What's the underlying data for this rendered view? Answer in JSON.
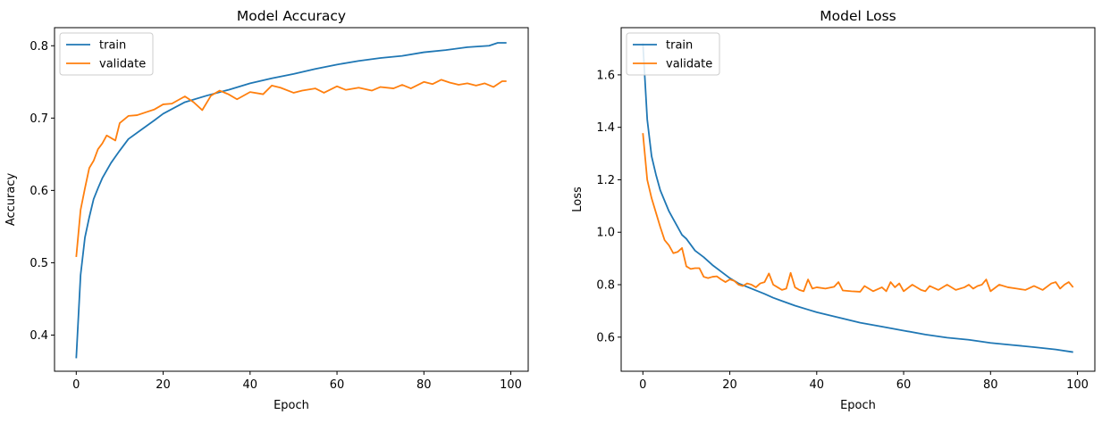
{
  "chart_data": [
    {
      "type": "line",
      "title": "Model Accuracy",
      "xlabel": "Epoch",
      "ylabel": "Accuracy",
      "xlim": [
        -5,
        104
      ],
      "ylim": [
        0.35,
        0.825
      ],
      "xticks": [
        0,
        20,
        40,
        60,
        80,
        100
      ],
      "yticks": [
        0.4,
        0.5,
        0.6,
        0.7,
        0.8
      ],
      "grid": false,
      "legend_position": "upper left",
      "series": [
        {
          "name": "train",
          "color": "#1f77b4",
          "x": [
            0,
            1,
            2,
            3,
            4,
            5,
            6,
            8,
            10,
            12,
            15,
            18,
            20,
            25,
            30,
            35,
            40,
            45,
            50,
            55,
            60,
            65,
            70,
            75,
            80,
            85,
            90,
            95,
            97,
            99
          ],
          "y": [
            0.368,
            0.483,
            0.535,
            0.563,
            0.588,
            0.603,
            0.617,
            0.638,
            0.655,
            0.671,
            0.684,
            0.697,
            0.706,
            0.722,
            0.731,
            0.739,
            0.748,
            0.755,
            0.761,
            0.768,
            0.774,
            0.779,
            0.783,
            0.786,
            0.791,
            0.794,
            0.798,
            0.8,
            0.804,
            0.804
          ]
        },
        {
          "name": "validate",
          "color": "#ff7f0e",
          "x": [
            0,
            1,
            2,
            3,
            4,
            5,
            6,
            7,
            9,
            10,
            12,
            14,
            16,
            18,
            20,
            22,
            25,
            27,
            29,
            31,
            33,
            35,
            37,
            40,
            43,
            45,
            47,
            50,
            52,
            55,
            57,
            60,
            62,
            65,
            68,
            70,
            73,
            75,
            77,
            80,
            82,
            84,
            86,
            88,
            90,
            92,
            94,
            96,
            98,
            99
          ],
          "y": [
            0.508,
            0.573,
            0.603,
            0.631,
            0.641,
            0.657,
            0.665,
            0.676,
            0.669,
            0.693,
            0.703,
            0.704,
            0.708,
            0.712,
            0.719,
            0.72,
            0.73,
            0.722,
            0.711,
            0.731,
            0.738,
            0.733,
            0.726,
            0.736,
            0.733,
            0.745,
            0.742,
            0.735,
            0.738,
            0.741,
            0.735,
            0.744,
            0.739,
            0.742,
            0.738,
            0.743,
            0.741,
            0.746,
            0.741,
            0.75,
            0.747,
            0.753,
            0.749,
            0.746,
            0.748,
            0.745,
            0.748,
            0.743,
            0.751,
            0.751
          ]
        }
      ]
    },
    {
      "type": "line",
      "title": "Model Loss",
      "xlabel": "Epoch",
      "ylabel": "Loss",
      "xlim": [
        -5,
        104
      ],
      "ylim": [
        0.47,
        1.78
      ],
      "xticks": [
        0,
        20,
        40,
        60,
        80,
        100
      ],
      "yticks": [
        0.6,
        0.8,
        1.0,
        1.2,
        1.4,
        1.6
      ],
      "grid": false,
      "legend_position": "upper left",
      "series": [
        {
          "name": "train",
          "color": "#1f77b4",
          "x": [
            0,
            1,
            2,
            3,
            4,
            5,
            6,
            7,
            8,
            9,
            10,
            12,
            14,
            16,
            18,
            20,
            22,
            25,
            28,
            30,
            32,
            35,
            38,
            40,
            45,
            50,
            55,
            60,
            65,
            70,
            75,
            80,
            85,
            90,
            95,
            99
          ],
          "y": [
            1.72,
            1.43,
            1.29,
            1.22,
            1.16,
            1.12,
            1.08,
            1.05,
            1.02,
            0.99,
            0.975,
            0.93,
            0.905,
            0.875,
            0.85,
            0.825,
            0.805,
            0.785,
            0.765,
            0.75,
            0.738,
            0.72,
            0.705,
            0.695,
            0.675,
            0.655,
            0.64,
            0.625,
            0.61,
            0.598,
            0.59,
            0.578,
            0.57,
            0.562,
            0.553,
            0.543
          ]
        },
        {
          "name": "validate",
          "color": "#ff7f0e",
          "x": [
            0,
            1,
            2,
            3,
            4,
            5,
            6,
            7,
            8,
            9,
            10,
            11,
            12,
            13,
            14,
            15,
            16,
            17,
            18,
            19,
            20,
            21,
            22,
            23,
            24,
            25,
            26,
            27,
            28,
            29,
            30,
            31,
            32,
            33,
            34,
            35,
            36,
            37,
            38,
            39,
            40,
            42,
            44,
            45,
            46,
            48,
            50,
            51,
            53,
            55,
            56,
            57,
            58,
            59,
            60,
            62,
            64,
            65,
            66,
            68,
            70,
            72,
            74,
            75,
            76,
            77,
            78,
            79,
            80,
            82,
            84,
            86,
            88,
            90,
            92,
            94,
            95,
            96,
            97,
            98,
            99
          ],
          "y": [
            1.378,
            1.2,
            1.13,
            1.075,
            1.02,
            0.97,
            0.95,
            0.92,
            0.925,
            0.94,
            0.87,
            0.86,
            0.863,
            0.863,
            0.83,
            0.825,
            0.83,
            0.832,
            0.82,
            0.81,
            0.82,
            0.815,
            0.8,
            0.795,
            0.805,
            0.8,
            0.79,
            0.805,
            0.81,
            0.843,
            0.8,
            0.79,
            0.78,
            0.785,
            0.845,
            0.79,
            0.78,
            0.775,
            0.82,
            0.785,
            0.79,
            0.785,
            0.792,
            0.81,
            0.778,
            0.775,
            0.773,
            0.795,
            0.775,
            0.79,
            0.775,
            0.81,
            0.79,
            0.805,
            0.775,
            0.8,
            0.78,
            0.775,
            0.795,
            0.78,
            0.8,
            0.78,
            0.79,
            0.8,
            0.785,
            0.795,
            0.8,
            0.82,
            0.775,
            0.8,
            0.79,
            0.785,
            0.78,
            0.795,
            0.78,
            0.805,
            0.81,
            0.785,
            0.8,
            0.81,
            0.79
          ]
        }
      ]
    }
  ]
}
